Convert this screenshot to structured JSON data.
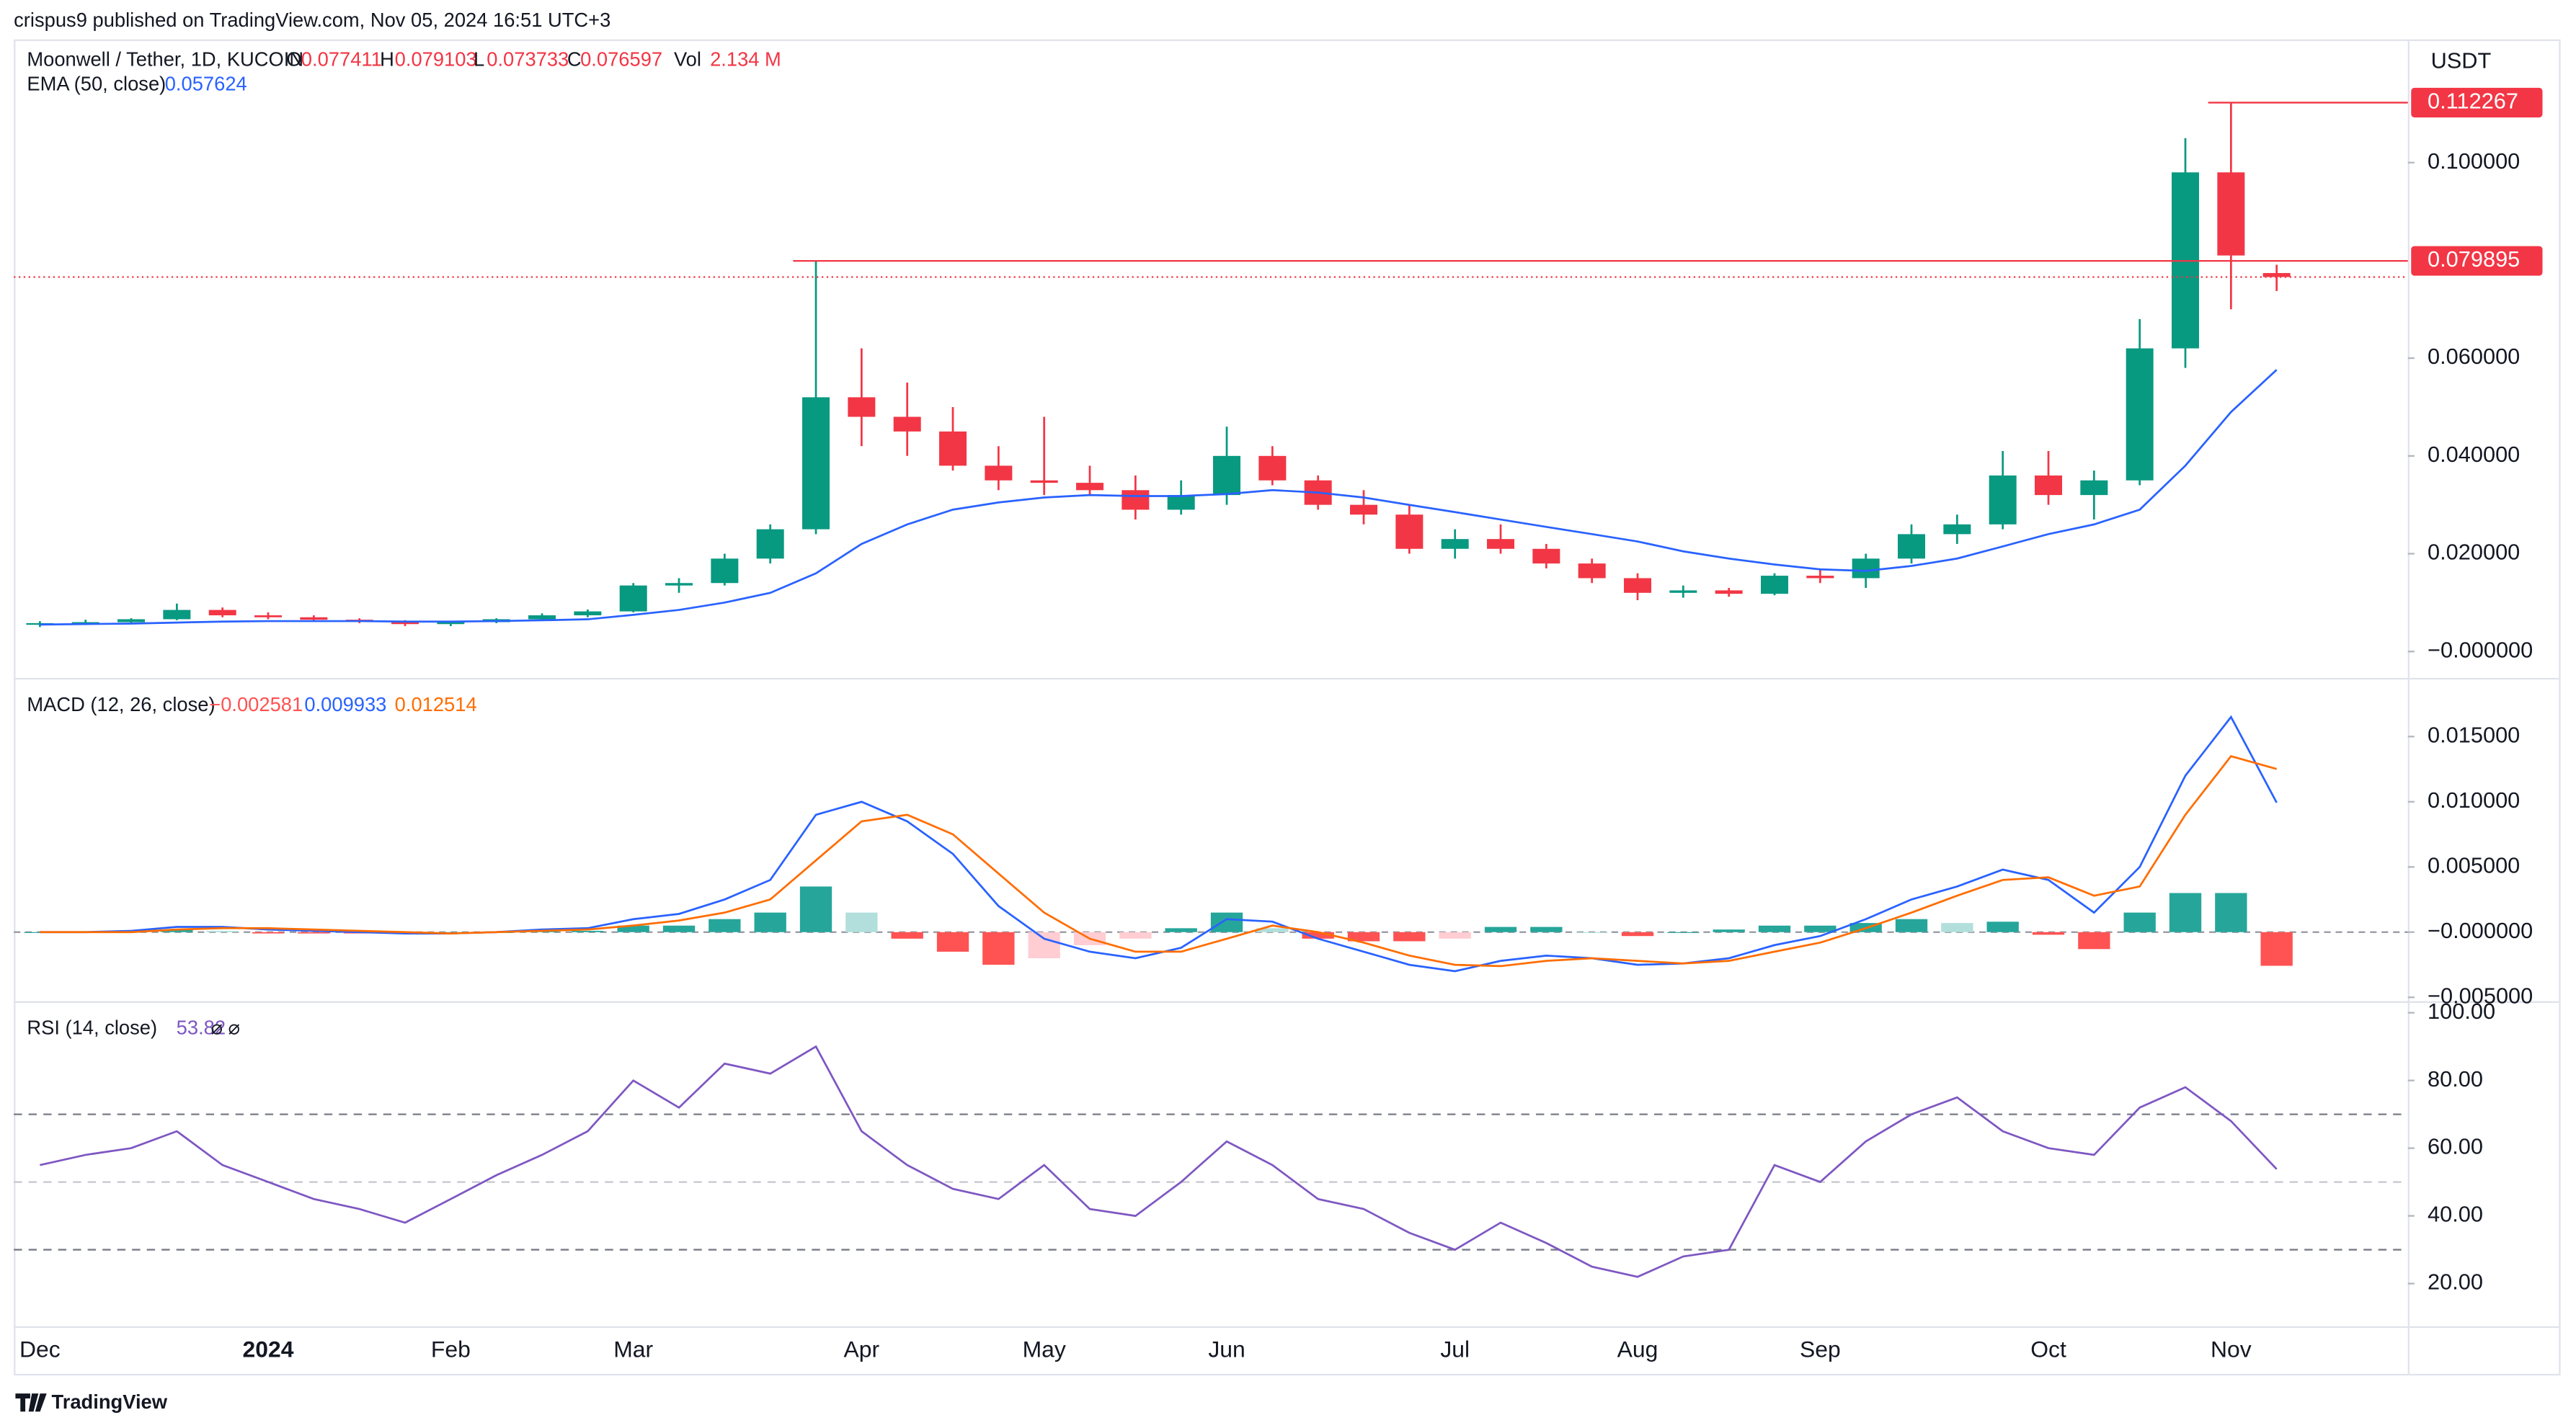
{
  "header": {
    "published": "crispus9 published on TradingView.com, Nov 05, 2024 16:51 UTC+3",
    "brand": "TradingView"
  },
  "chart_data": [
    {
      "type": "candlestick",
      "title": "Moonwell / Tether, 1D, KUCOIN",
      "legend": [
        {
          "key": "O",
          "value": "0.077411"
        },
        {
          "key": "H",
          "value": "0.079103"
        },
        {
          "key": "L",
          "value": "0.073733"
        },
        {
          "key": "C",
          "value": "0.076597"
        },
        {
          "key": "Vol",
          "value": "2.134 M"
        }
      ],
      "categories": [
        "Dec",
        null,
        null,
        null,
        null,
        "2024",
        null,
        null,
        null,
        "Feb",
        null,
        null,
        null,
        "Mar",
        null,
        null,
        null,
        null,
        "Apr",
        null,
        null,
        null,
        "May",
        null,
        null,
        null,
        "Jun",
        null,
        null,
        null,
        null,
        "Jul",
        null,
        null,
        null,
        "Aug",
        null,
        null,
        null,
        "Sep",
        null,
        null,
        null,
        null,
        "Oct",
        null,
        null,
        null,
        "Nov",
        null
      ],
      "open": [
        0.0055,
        0.0058,
        0.006,
        0.0066,
        0.0085,
        0.0074,
        0.007,
        0.0065,
        0.0062,
        0.0056,
        0.006,
        0.0066,
        0.0074,
        0.0082,
        0.0135,
        0.014,
        0.019,
        0.025,
        0.052,
        0.048,
        0.045,
        0.038,
        0.035,
        0.0345,
        0.033,
        0.029,
        0.032,
        0.04,
        0.035,
        0.03,
        0.028,
        0.021,
        0.023,
        0.021,
        0.018,
        0.015,
        0.012,
        0.0125,
        0.0118,
        0.0155,
        0.015,
        0.019,
        0.024,
        0.026,
        0.036,
        0.032,
        0.035,
        0.062,
        0.098,
        0.077411
      ],
      "high": [
        0.0062,
        0.0065,
        0.0068,
        0.0098,
        0.009,
        0.008,
        0.0074,
        0.0068,
        0.0064,
        0.0062,
        0.0068,
        0.0078,
        0.0086,
        0.014,
        0.015,
        0.02,
        0.026,
        0.079895,
        0.062,
        0.055,
        0.05,
        0.042,
        0.048,
        0.038,
        0.036,
        0.035,
        0.046,
        0.042,
        0.036,
        0.033,
        0.03,
        0.025,
        0.026,
        0.022,
        0.019,
        0.016,
        0.0135,
        0.013,
        0.016,
        0.017,
        0.02,
        0.026,
        0.028,
        0.041,
        0.041,
        0.037,
        0.068,
        0.105,
        0.112267,
        0.079103
      ],
      "low": [
        0.005,
        0.0054,
        0.0057,
        0.0064,
        0.007,
        0.0066,
        0.0062,
        0.0058,
        0.0052,
        0.0052,
        0.0058,
        0.0064,
        0.007,
        0.008,
        0.012,
        0.0135,
        0.018,
        0.024,
        0.042,
        0.04,
        0.037,
        0.033,
        0.032,
        0.032,
        0.027,
        0.028,
        0.03,
        0.034,
        0.029,
        0.026,
        0.02,
        0.019,
        0.02,
        0.017,
        0.014,
        0.0105,
        0.011,
        0.0112,
        0.0115,
        0.014,
        0.013,
        0.018,
        0.022,
        0.025,
        0.03,
        0.027,
        0.034,
        0.058,
        0.07,
        0.073733
      ],
      "close": [
        0.0058,
        0.006,
        0.0066,
        0.0085,
        0.0074,
        0.007,
        0.0065,
        0.0062,
        0.0056,
        0.006,
        0.0066,
        0.0074,
        0.0082,
        0.0135,
        0.014,
        0.019,
        0.025,
        0.052,
        0.048,
        0.045,
        0.038,
        0.035,
        0.0345,
        0.033,
        0.029,
        0.032,
        0.04,
        0.035,
        0.03,
        0.028,
        0.021,
        0.023,
        0.021,
        0.018,
        0.015,
        0.012,
        0.0125,
        0.0118,
        0.0155,
        0.015,
        0.019,
        0.024,
        0.026,
        0.036,
        0.032,
        0.035,
        0.062,
        0.098,
        0.081,
        0.076597
      ],
      "up_color": "#089981",
      "down_color": "#f23645",
      "series": [
        {
          "name": "EMA (50, close)",
          "value_label": "0.057624",
          "color": "#2962ff",
          "values": [
            0.0055,
            0.0056,
            0.0057,
            0.0059,
            0.0061,
            0.0062,
            0.0062,
            0.0062,
            0.0061,
            0.0061,
            0.0062,
            0.0064,
            0.0066,
            0.0075,
            0.0085,
            0.01,
            0.012,
            0.016,
            0.022,
            0.026,
            0.029,
            0.0305,
            0.0315,
            0.032,
            0.0318,
            0.0318,
            0.0322,
            0.033,
            0.0325,
            0.0315,
            0.03,
            0.0285,
            0.027,
            0.0255,
            0.024,
            0.0225,
            0.0205,
            0.019,
            0.0178,
            0.0168,
            0.0165,
            0.0175,
            0.019,
            0.0215,
            0.024,
            0.026,
            0.029,
            0.038,
            0.049,
            0.057624
          ]
        }
      ],
      "y_label": "USDT",
      "price_lines": [
        {
          "value": 0.112267,
          "label": "0.112267"
        },
        {
          "value": 0.079895,
          "label": "0.079895"
        }
      ],
      "ylim": [
        -0.0054,
        0.1252
      ],
      "yticks": [
        {
          "value": 0,
          "label": "−0.000000"
        },
        {
          "value": 0.02,
          "label": "0.020000"
        },
        {
          "value": 0.04,
          "label": "0.040000"
        },
        {
          "value": 0.06,
          "label": "0.060000"
        },
        {
          "value": 0.1,
          "label": "0.100000"
        }
      ],
      "grid": false
    },
    {
      "type": "macd",
      "title": "MACD (12, 26, close)",
      "series": [
        {
          "style": "histogram",
          "value_label": "−0.002581",
          "colors": {
            "up": "#26a69a",
            "up_fading": "#b2dfdb",
            "down": "#ff5252",
            "down_fading": "#ffcdd2"
          },
          "values": [
            0,
            0,
            0.0001,
            0.0002,
            0.0001,
            -0.0001,
            -0.0001,
            -0.0001,
            -0.0001,
            0,
            0,
            0.0001,
            0.0001,
            0.0005,
            0.0005,
            0.001,
            0.0015,
            0.0035,
            0.0015,
            -0.0005,
            -0.0015,
            -0.0025,
            -0.002,
            -0.001,
            -0.0005,
            0.0003,
            0.0015,
            0.0003,
            -0.0005,
            -0.0007,
            -0.0007,
            -0.0005,
            0.0004,
            0.0004,
            0,
            -0.0003,
            0,
            0.0002,
            0.0005,
            0.0005,
            0.0007,
            0.001,
            0.0007,
            0.0008,
            -0.0002,
            -0.0013,
            0.0015,
            0.003,
            0.003,
            -0.002581
          ]
        },
        {
          "style": "line",
          "value_label": "0.009933",
          "color": "#2962ff",
          "values": [
            0,
            0,
            0.0001,
            0.0004,
            0.0004,
            0.0002,
            0.0001,
            0,
            -0.0001,
            -0.0001,
            0,
            0.0002,
            0.0003,
            0.001,
            0.0014,
            0.0025,
            0.004,
            0.009,
            0.01,
            0.0085,
            0.006,
            0.002,
            -0.0005,
            -0.0015,
            -0.002,
            -0.0012,
            0.001,
            0.0008,
            -0.0005,
            -0.0015,
            -0.0025,
            -0.003,
            -0.0022,
            -0.0018,
            -0.002,
            -0.0025,
            -0.0024,
            -0.002,
            -0.001,
            -0.0003,
            0.001,
            0.0025,
            0.0035,
            0.0048,
            0.004,
            0.0015,
            0.005,
            0.012,
            0.0165,
            0.009933
          ]
        },
        {
          "style": "line",
          "value_label": "0.012514",
          "color": "#ff6d00",
          "values": [
            0,
            0,
            0,
            0.0002,
            0.0003,
            0.0003,
            0.0002,
            0.0001,
            0,
            -0.0001,
            0,
            0.0001,
            0.0002,
            0.0005,
            0.0009,
            0.0015,
            0.0025,
            0.0055,
            0.0085,
            0.009,
            0.0075,
            0.0045,
            0.0015,
            -0.0005,
            -0.0015,
            -0.0015,
            -0.0005,
            0.0005,
            0,
            -0.0008,
            -0.0018,
            -0.0025,
            -0.0026,
            -0.0022,
            -0.002,
            -0.0022,
            -0.0024,
            -0.0022,
            -0.0015,
            -0.0008,
            0.0003,
            0.0015,
            0.0028,
            0.004,
            0.0042,
            0.0028,
            0.0035,
            0.009,
            0.0135,
            0.012514
          ]
        }
      ],
      "ylim": [
        -0.0053,
        0.0195
      ],
      "yticks": [
        {
          "value": -0.005,
          "label": "−0.005000"
        },
        {
          "value": 0,
          "label": "−0.000000"
        },
        {
          "value": 0.005,
          "label": "0.005000"
        },
        {
          "value": 0.01,
          "label": "0.010000"
        },
        {
          "value": 0.015,
          "label": "0.015000"
        }
      ]
    },
    {
      "type": "line",
      "title": "RSI (14, close)",
      "legend_extra": "⌀ ⌀",
      "series": [
        {
          "value_label": "53.82",
          "color": "#7e57c2",
          "values": [
            55,
            58,
            60,
            65,
            55,
            50,
            45,
            42,
            38,
            45,
            52,
            58,
            65,
            80,
            72,
            85,
            82,
            90,
            65,
            55,
            48,
            45,
            55,
            42,
            40,
            50,
            62,
            55,
            45,
            42,
            35,
            30,
            38,
            32,
            25,
            22,
            28,
            30,
            55,
            50,
            62,
            70,
            75,
            65,
            60,
            58,
            72,
            78,
            68,
            53.82
          ]
        }
      ],
      "bands": [
        70,
        50,
        30
      ],
      "ylim": [
        7.4,
        103.4
      ],
      "yticks": [
        {
          "value": 20,
          "label": "20.00"
        },
        {
          "value": 40,
          "label": "40.00"
        },
        {
          "value": 60,
          "label": "60.00"
        },
        {
          "value": 80,
          "label": "80.00"
        },
        {
          "value": 100,
          "label": "100.00"
        }
      ]
    }
  ]
}
